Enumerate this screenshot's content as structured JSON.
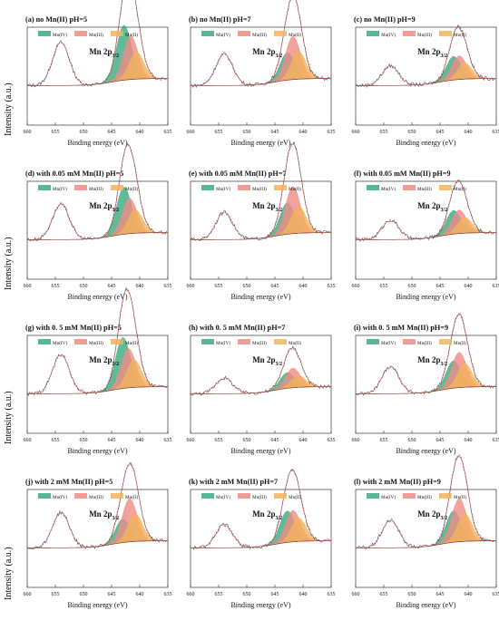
{
  "figure": {
    "ylabel": "Intensity (a.u.)",
    "xlabel": "Binding energy (eV)",
    "peak_label_main": "Mn 2p",
    "peak_label_sub": "3/2",
    "legend": [
      "Mn(IV)",
      "Mn(III)",
      "Mn(II)"
    ],
    "colors": {
      "mn_iv": "#3aaa80",
      "mn_iii": "#f08b84",
      "mn_ii": "#f2b35c",
      "raw": "#555555",
      "fit": "#d0453f",
      "background": "#8b3a3a"
    }
  },
  "chart_data": [
    {
      "type": "line",
      "title": "(a) no Mn(II) pH=5",
      "xlabel": "Binding energy (eV)",
      "ylabel": "Intensity (a.u.)",
      "xlim": [
        660,
        635
      ],
      "x_ticks": [
        660,
        655,
        650,
        645,
        640,
        635
      ],
      "peaks": {
        "satellite": {
          "center": 654.0,
          "height": 0.55
        },
        "mn_iv": {
          "center": 642.8,
          "height": 0.7
        },
        "mn_iii": {
          "center": 641.6,
          "height": 0.55
        },
        "mn_ii": {
          "center": 640.6,
          "height": 0.35
        }
      }
    },
    {
      "type": "line",
      "title": "(b) no Mn(II) pH=7",
      "xlabel": "Binding energy (eV)",
      "ylabel": "Intensity (a.u.)",
      "xlim": [
        660,
        635
      ],
      "x_ticks": [
        660,
        655,
        650,
        645,
        640,
        635
      ],
      "peaks": {
        "satellite": {
          "center": 654.0,
          "height": 0.4
        },
        "mn_iv": {
          "center": 642.8,
          "height": 0.35
        },
        "mn_iii": {
          "center": 641.8,
          "height": 0.55
        },
        "mn_ii": {
          "center": 640.8,
          "height": 0.35
        }
      }
    },
    {
      "type": "line",
      "title": "(c) no Mn(II) pH=9",
      "xlabel": "Binding energy (eV)",
      "ylabel": "Intensity (a.u.)",
      "xlim": [
        660,
        635
      ],
      "x_ticks": [
        660,
        655,
        650,
        645,
        640,
        635
      ],
      "peaks": {
        "satellite": {
          "center": 653.8,
          "height": 0.25
        },
        "mn_iv": {
          "center": 642.6,
          "height": 0.3
        },
        "mn_iii": {
          "center": 641.6,
          "height": 0.3
        },
        "mn_ii": {
          "center": 640.6,
          "height": 0.2
        }
      }
    },
    {
      "type": "line",
      "title": "(d) with 0.05 mM Mn(II) pH=5",
      "xlabel": "Binding energy (eV)",
      "ylabel": "Intensity (a.u.)",
      "xlim": [
        660,
        635
      ],
      "x_ticks": [
        660,
        655,
        650,
        645,
        640,
        635
      ],
      "peaks": {
        "satellite": {
          "center": 654.0,
          "height": 0.45
        },
        "mn_iv": {
          "center": 642.8,
          "height": 0.6
        },
        "mn_iii": {
          "center": 641.8,
          "height": 0.45
        },
        "mn_ii": {
          "center": 640.8,
          "height": 0.3
        }
      }
    },
    {
      "type": "line",
      "title": "(e) with 0.05 mM Mn(II) pH=7",
      "xlabel": "Binding energy (eV)",
      "ylabel": "Intensity (a.u.)",
      "xlim": [
        660,
        635
      ],
      "x_ticks": [
        660,
        655,
        650,
        645,
        640,
        635
      ],
      "peaks": {
        "satellite": {
          "center": 654.0,
          "height": 0.35
        },
        "mn_iv": {
          "center": 642.8,
          "height": 0.4
        },
        "mn_iii": {
          "center": 641.8,
          "height": 0.6
        },
        "mn_ii": {
          "center": 640.8,
          "height": 0.35
        }
      }
    },
    {
      "type": "line",
      "title": "(f) with 0.05 mM Mn(II) pH=9",
      "xlabel": "Binding energy (eV)",
      "ylabel": "Intensity (a.u.)",
      "xlim": [
        660,
        635
      ],
      "x_ticks": [
        660,
        655,
        650,
        645,
        640,
        635
      ],
      "peaks": {
        "satellite": {
          "center": 653.8,
          "height": 0.25
        },
        "mn_iv": {
          "center": 642.6,
          "height": 0.3
        },
        "mn_iii": {
          "center": 641.6,
          "height": 0.3
        },
        "mn_ii": {
          "center": 640.6,
          "height": 0.2
        }
      }
    },
    {
      "type": "line",
      "title": "(g) with 0. 5 mM Mn(II) pH=5",
      "xlabel": "Binding energy (eV)",
      "ylabel": "Intensity (a.u.)",
      "xlim": [
        660,
        635
      ],
      "x_ticks": [
        660,
        655,
        650,
        645,
        640,
        635
      ],
      "peaks": {
        "satellite": {
          "center": 654.0,
          "height": 0.5
        },
        "mn_iv": {
          "center": 643.0,
          "height": 0.65
        },
        "mn_iii": {
          "center": 642.0,
          "height": 0.5
        },
        "mn_ii": {
          "center": 641.0,
          "height": 0.35
        }
      }
    },
    {
      "type": "line",
      "title": "(h) with 0. 5 mM Mn(II) pH=7",
      "xlabel": "Binding energy (eV)",
      "ylabel": "Intensity (a.u.)",
      "xlim": [
        660,
        635
      ],
      "x_ticks": [
        660,
        655,
        650,
        645,
        640,
        635
      ],
      "peaks": {
        "satellite": {
          "center": 654.0,
          "height": 0.2
        },
        "mn_iv": {
          "center": 642.8,
          "height": 0.2
        },
        "mn_iii": {
          "center": 641.8,
          "height": 0.25
        },
        "mn_ii": {
          "center": 640.8,
          "height": 0.15
        }
      }
    },
    {
      "type": "line",
      "title": "(i) with 0. 5 mM Mn(II) pH=9",
      "xlabel": "Binding energy (eV)",
      "ylabel": "Intensity (a.u.)",
      "xlim": [
        660,
        635
      ],
      "x_ticks": [
        660,
        655,
        650,
        645,
        640,
        635
      ],
      "peaks": {
        "satellite": {
          "center": 653.8,
          "height": 0.35
        },
        "mn_iv": {
          "center": 642.6,
          "height": 0.35
        },
        "mn_iii": {
          "center": 641.6,
          "height": 0.45
        },
        "mn_ii": {
          "center": 640.6,
          "height": 0.3
        }
      }
    },
    {
      "type": "line",
      "title": "(j) with 2 mM Mn(II) pH=5",
      "xlabel": "Binding energy (eV)",
      "ylabel": "Intensity (a.u.)",
      "xlim": [
        660,
        635
      ],
      "x_ticks": [
        660,
        655,
        650,
        645,
        640,
        635
      ],
      "peaks": {
        "satellite": {
          "center": 654.0,
          "height": 0.45
        },
        "mn_iv": {
          "center": 643.0,
          "height": 0.3
        },
        "mn_iii": {
          "center": 641.8,
          "height": 0.55
        },
        "mn_ii": {
          "center": 640.8,
          "height": 0.35
        }
      }
    },
    {
      "type": "line",
      "title": "(k) with 2 mM Mn(II) pH=7",
      "xlabel": "Binding energy (eV)",
      "ylabel": "Intensity (a.u.)",
      "xlim": [
        660,
        635
      ],
      "x_ticks": [
        660,
        655,
        650,
        645,
        640,
        635
      ],
      "peaks": {
        "satellite": {
          "center": 654.0,
          "height": 0.3
        },
        "mn_iv": {
          "center": 642.8,
          "height": 0.4
        },
        "mn_iii": {
          "center": 641.8,
          "height": 0.4
        },
        "mn_ii": {
          "center": 640.8,
          "height": 0.3
        }
      }
    },
    {
      "type": "line",
      "title": "(l) with 2 mM Mn(II) pH=9",
      "xlabel": "Binding energy (eV)",
      "ylabel": "Intensity (a.u.)",
      "xlim": [
        660,
        635
      ],
      "x_ticks": [
        660,
        655,
        650,
        645,
        640,
        635
      ],
      "peaks": {
        "satellite": {
          "center": 653.8,
          "height": 0.35
        },
        "mn_iv": {
          "center": 642.6,
          "height": 0.4
        },
        "mn_iii": {
          "center": 641.6,
          "height": 0.55
        },
        "mn_ii": {
          "center": 640.6,
          "height": 0.35
        }
      }
    }
  ]
}
